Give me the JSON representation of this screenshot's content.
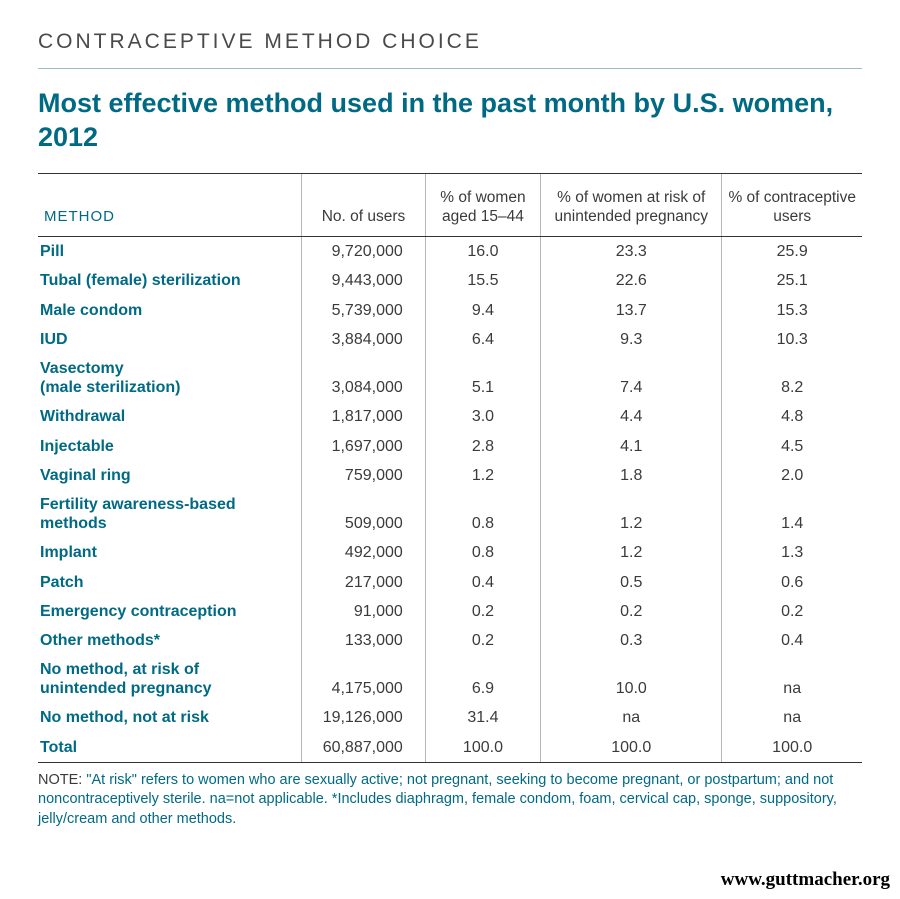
{
  "eyebrow": "CONTRACEPTIVE METHOD CHOICE",
  "headline": "Most effective method used in the past month by U.S. women, 2012",
  "table": {
    "type": "table",
    "colors": {
      "accent": "#006a84",
      "text": "#3b3b3b",
      "rule": "#333333",
      "vsep": "#b7b7b7",
      "background": "#ffffff"
    },
    "font": {
      "family": "Helvetica Neue",
      "body_size_pt": 12,
      "header_size_pt": 11.5
    },
    "column_widths_pct": [
      32,
      15,
      14,
      22,
      17
    ],
    "columns": [
      "METHOD",
      "No. of users",
      "% of women aged 15–44",
      "% of women at risk of unintended pregnancy",
      "% of contraceptive users"
    ],
    "rows": [
      {
        "method": "Pill",
        "users": "9,720,000",
        "pct_15_44": "16.0",
        "pct_at_risk": "23.3",
        "pct_users": "25.9"
      },
      {
        "method": "Tubal (female) sterilization",
        "users": "9,443,000",
        "pct_15_44": "15.5",
        "pct_at_risk": "22.6",
        "pct_users": "25.1"
      },
      {
        "method": "Male condom",
        "users": "5,739,000",
        "pct_15_44": "9.4",
        "pct_at_risk": "13.7",
        "pct_users": "15.3"
      },
      {
        "method": "IUD",
        "users": "3,884,000",
        "pct_15_44": "6.4",
        "pct_at_risk": "9.3",
        "pct_users": "10.3"
      },
      {
        "method": "Vasectomy\n(male sterilization)",
        "users": "3,084,000",
        "pct_15_44": "5.1",
        "pct_at_risk": "7.4",
        "pct_users": "8.2"
      },
      {
        "method": "Withdrawal",
        "users": "1,817,000",
        "pct_15_44": "3.0",
        "pct_at_risk": "4.4",
        "pct_users": "4.8"
      },
      {
        "method": "Injectable",
        "users": "1,697,000",
        "pct_15_44": "2.8",
        "pct_at_risk": "4.1",
        "pct_users": "4.5"
      },
      {
        "method": "Vaginal ring",
        "users": "759,000",
        "pct_15_44": "1.2",
        "pct_at_risk": "1.8",
        "pct_users": "2.0"
      },
      {
        "method": "Fertility awareness-based methods",
        "users": "509,000",
        "pct_15_44": "0.8",
        "pct_at_risk": "1.2",
        "pct_users": "1.4"
      },
      {
        "method": "Implant",
        "users": "492,000",
        "pct_15_44": "0.8",
        "pct_at_risk": "1.2",
        "pct_users": "1.3"
      },
      {
        "method": "Patch",
        "users": "217,000",
        "pct_15_44": "0.4",
        "pct_at_risk": "0.5",
        "pct_users": "0.6"
      },
      {
        "method": "Emergency contraception",
        "users": "91,000",
        "pct_15_44": "0.2",
        "pct_at_risk": "0.2",
        "pct_users": "0.2"
      },
      {
        "method": "Other methods*",
        "users": "133,000",
        "pct_15_44": "0.2",
        "pct_at_risk": "0.3",
        "pct_users": "0.4"
      },
      {
        "method": "No method, at risk of unintended pregnancy",
        "users": "4,175,000",
        "pct_15_44": "6.9",
        "pct_at_risk": "10.0",
        "pct_users": "na"
      },
      {
        "method": "No method, not at risk",
        "users": "19,126,000",
        "pct_15_44": "31.4",
        "pct_at_risk": "na",
        "pct_users": "na"
      },
      {
        "method": "Total",
        "users": "60,887,000",
        "pct_15_44": "100.0",
        "pct_at_risk": "100.0",
        "pct_users": "100.0",
        "total": true
      }
    ]
  },
  "note_label": "NOTE: ",
  "note": "\"At risk\" refers to women who are sexually active; not pregnant, seeking to become pregnant, or postpartum; and not noncontraceptively sterile. na=not applicable. *Includes diaphragm, female condom, foam, cervical cap, sponge, suppository, jelly/cream and other methods.",
  "source": "www.guttmacher.org"
}
